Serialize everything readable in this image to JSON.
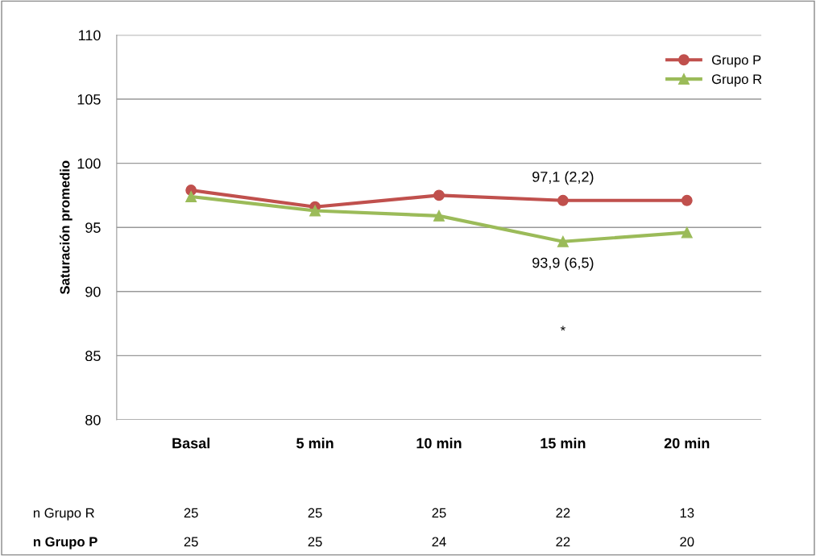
{
  "chart_data": {
    "type": "line",
    "ylabel": "Saturación promedio",
    "categories": [
      "Basal",
      "5 min",
      "10 min",
      "15 min",
      "20 min"
    ],
    "series": [
      {
        "name": "Grupo P",
        "color": "#c0504d",
        "marker": "circle",
        "values": [
          97.9,
          96.6,
          97.5,
          97.1,
          97.1
        ]
      },
      {
        "name": "Grupo R",
        "color": "#9bbb59",
        "marker": "triangle",
        "values": [
          97.4,
          96.3,
          95.9,
          93.9,
          94.6
        ]
      }
    ],
    "ylim": [
      80,
      110
    ],
    "yticks": [
      80,
      85,
      90,
      95,
      100,
      105,
      110
    ],
    "grid": "y",
    "legend": "top right",
    "annotations": [
      {
        "text": "97,1 (2,2)",
        "x": "15 min",
        "y": 97.1
      },
      {
        "text": "93,9 (6,5)",
        "x": "15 min",
        "y": 93.9
      },
      "*",
      "n Grupo R",
      "25",
      "25",
      "25",
      "22",
      "13",
      "n Grupo P",
      "25",
      "25",
      "24",
      "22",
      "20"
    ]
  }
}
